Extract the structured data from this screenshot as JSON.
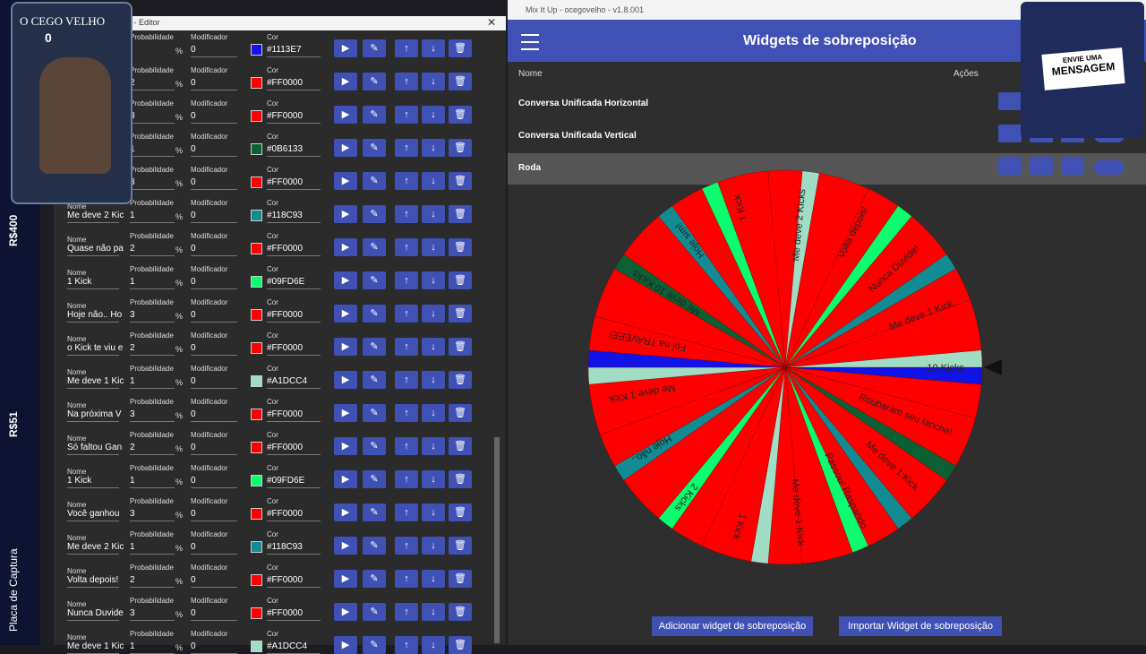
{
  "side_labels": [
    "R$400",
    "R$51",
    "Placa de Captura"
  ],
  "webcam": {
    "name": "O CEGO VELHO",
    "count": "0"
  },
  "message_overlay": {
    "line1": "ENVIE UMA",
    "line2": "MENSAGEM"
  },
  "editor": {
    "title": "lo - Editor",
    "labels": {
      "name": "Nome",
      "probability": "Probabilidade",
      "percent": "%",
      "modifier": "Modificador",
      "color": "Cor"
    },
    "rows": [
      {
        "modifier": "0",
        "color": "#1113E7"
      },
      {
        "probability": "2",
        "modifier": "0",
        "color": "#FF0000"
      },
      {
        "probability": "3",
        "modifier": "0",
        "color": "#FF0000"
      },
      {
        "probability": "1",
        "modifier": "0",
        "color": "#0B6133"
      },
      {
        "probability": "3",
        "modifier": "0",
        "color": "#FF0000"
      },
      {
        "name": "Me deve 2 Kic",
        "probability": "1",
        "modifier": "0",
        "color": "#118C93"
      },
      {
        "name": "Quase não pa",
        "probability": "2",
        "modifier": "0",
        "color": "#FF0000"
      },
      {
        "name": "1 Kick",
        "probability": "1",
        "modifier": "0",
        "color": "#09FD6E"
      },
      {
        "name": "Hoje não.. Ho",
        "probability": "3",
        "modifier": "0",
        "color": "#FF0000"
      },
      {
        "name": "o Kick te viu e",
        "probability": "2",
        "modifier": "0",
        "color": "#FF0000"
      },
      {
        "name": "Me deve 1 Kic",
        "probability": "1",
        "modifier": "0",
        "color": "#A1DCC4"
      },
      {
        "name": "Na próxima V",
        "probability": "3",
        "modifier": "0",
        "color": "#FF0000"
      },
      {
        "name": "Só faltou Gan",
        "probability": "2",
        "modifier": "0",
        "color": "#FF0000"
      },
      {
        "name": "1 Kick",
        "probability": "1",
        "modifier": "0",
        "color": "#09FD6E"
      },
      {
        "name": "Você ganhou",
        "probability": "3",
        "modifier": "0",
        "color": "#FF0000"
      },
      {
        "name": "Me deve 2 Kic",
        "probability": "1",
        "modifier": "0",
        "color": "#118C93"
      },
      {
        "name": "Volta depois!",
        "probability": "2",
        "modifier": "0",
        "color": "#FF0000"
      },
      {
        "name": "Nunca Duvide",
        "probability": "3",
        "modifier": "0",
        "color": "#FF0000"
      },
      {
        "name": "Me deve 1 Kic",
        "probability": "1",
        "modifier": "0",
        "color": "#A1DCC4"
      }
    ]
  },
  "app": {
    "title": "Mix It Up - ocegovelho - v1.8.001",
    "header": "Widgets de sobreposição",
    "columns": [
      "Nome",
      "Ações"
    ],
    "widgets": [
      "Conversa Unificada Horizontal",
      "Conversa Unificada Vertical",
      "Roda"
    ],
    "buttons": [
      "Adicionar widget de sobreposição",
      "Importar Widget de sobreposição"
    ]
  },
  "wheel_labels": [
    "10 Kicks",
    "Roubaram seu lanche!",
    "Me deve 1 Kick",
    "Passou! Raspando",
    "Me deve 1 Kick",
    "1 Kick",
    "2 Kicks",
    "Hoje não..",
    "Me deve 1 Kick",
    "Foi na TRAVEEE!",
    "Me deve 10 Kicks",
    "Hoje sim!",
    "1 Kick",
    "Me deve 2 Kicks",
    "Volta depois!",
    "Nunca Duvide!",
    "Me deve 1 Kick"
  ]
}
